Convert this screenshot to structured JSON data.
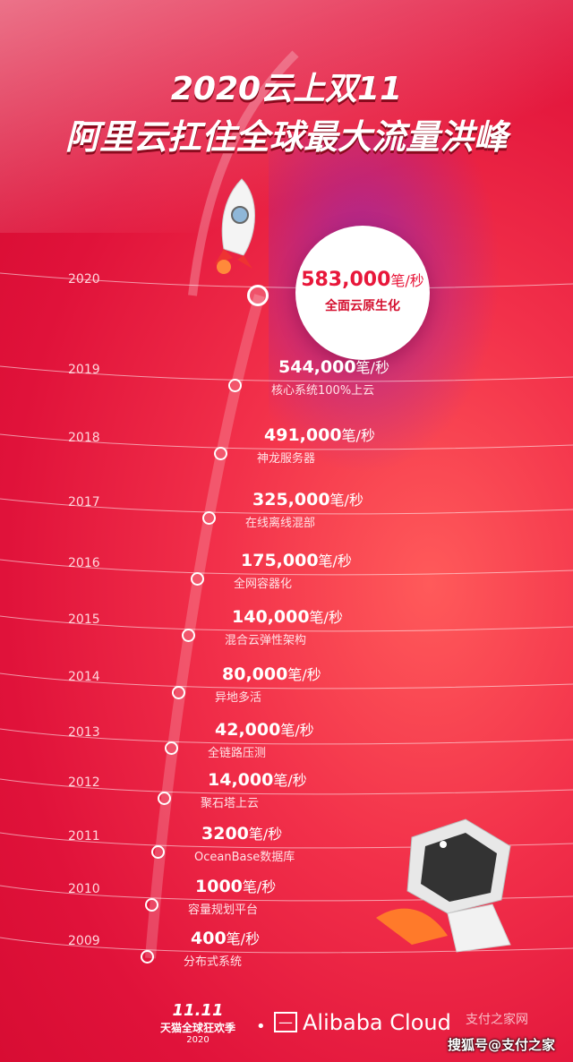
{
  "title": {
    "line1": "2020云上双11",
    "line2": "阿里云扛住全球最大流量洪峰"
  },
  "colors": {
    "background": "#e0123a",
    "accent": "#e8173a",
    "text": "#ffffff"
  },
  "highlight": {
    "year": "2020",
    "value": "583,000",
    "unit": "笔/秒",
    "desc": "全面云原生化"
  },
  "timeline": [
    {
      "year": "2019",
      "value": "544,000",
      "unit": "笔/秒",
      "desc": "核心系统100%上云"
    },
    {
      "year": "2018",
      "value": "491,000",
      "unit": "笔/秒",
      "desc": "神龙服务器"
    },
    {
      "year": "2017",
      "value": "325,000",
      "unit": "笔/秒",
      "desc": "在线离线混部"
    },
    {
      "year": "2016",
      "value": "175,000",
      "unit": "笔/秒",
      "desc": "全网容器化"
    },
    {
      "year": "2015",
      "value": "140,000",
      "unit": "笔/秒",
      "desc": "混合云弹性架构"
    },
    {
      "year": "2014",
      "value": "80,000",
      "unit": "笔/秒",
      "desc": "异地多活"
    },
    {
      "year": "2013",
      "value": "42,000",
      "unit": "笔/秒",
      "desc": "全链路压测"
    },
    {
      "year": "2012",
      "value": "14,000",
      "unit": "笔/秒",
      "desc": "聚石塔上云"
    },
    {
      "year": "2011",
      "value": "3200",
      "unit": "笔/秒",
      "desc": "OceanBase数据库"
    },
    {
      "year": "2010",
      "value": "1000",
      "unit": "笔/秒",
      "desc": "容量规划平台"
    },
    {
      "year": "2009",
      "value": "400",
      "unit": "笔/秒",
      "desc": "分布式系统"
    }
  ],
  "footer": {
    "tmall_logo": "11.11",
    "tmall_line1": "天猫全球狂欢季",
    "tmall_line2": "2020",
    "separator": "•",
    "alibaba_mark": "—",
    "alibaba_cloud": "Alibaba Cloud",
    "watermark1": "支付之家网",
    "watermark2": "搜狐号@支付之家"
  }
}
